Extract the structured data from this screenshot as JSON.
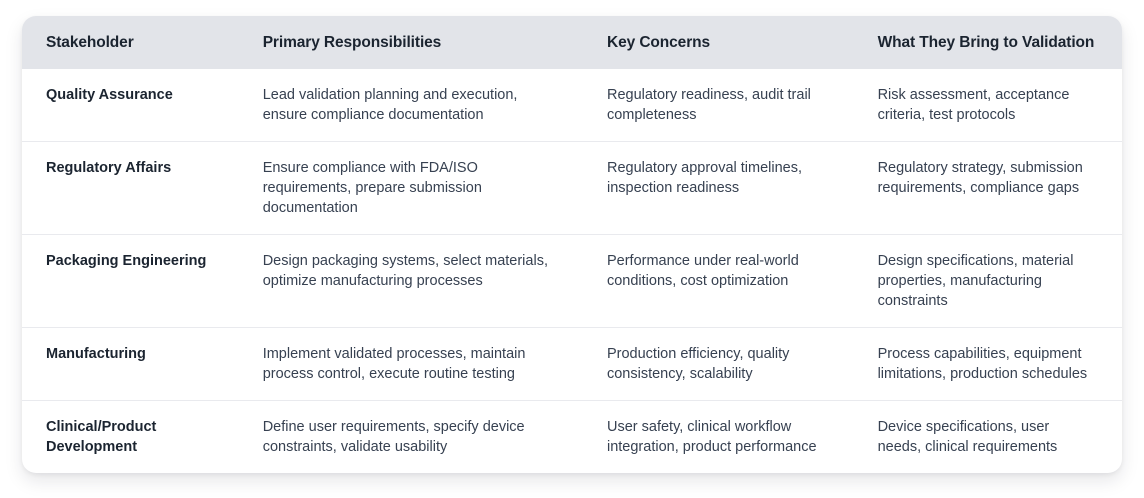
{
  "table": {
    "columns": [
      {
        "label": "Stakeholder"
      },
      {
        "label": "Primary Responsibilities"
      },
      {
        "label": "Key Concerns"
      },
      {
        "label": "What They Bring to Validation"
      }
    ],
    "rows": [
      {
        "stakeholder": "Quality Assurance",
        "responsibilities": "Lead validation planning and execution, ensure compliance documentation",
        "concerns": "Regulatory readiness, audit trail completeness",
        "brings": "Risk assessment, acceptance criteria, test protocols"
      },
      {
        "stakeholder": "Regulatory Affairs",
        "responsibilities": "Ensure compliance with FDA/ISO requirements, prepare submission documentation",
        "concerns": "Regulatory approval timelines, inspection readiness",
        "brings": "Regulatory strategy, submission requirements, compliance gaps"
      },
      {
        "stakeholder": "Packaging Engineering",
        "responsibilities": "Design packaging systems, select materials, optimize manufacturing processes",
        "concerns": "Performance under real-world conditions, cost optimization",
        "brings": "Design specifications, material properties, manufacturing constraints"
      },
      {
        "stakeholder": "Manufacturing",
        "responsibilities": "Implement validated processes, maintain process control, execute routine testing",
        "concerns": "Production efficiency, quality consistency, scalability",
        "brings": "Process capabilities, equipment limitations, production schedules"
      },
      {
        "stakeholder": "Clinical/Product Development",
        "responsibilities": "Define user requirements, specify device constraints, validate usability",
        "concerns": "User safety, clinical workflow integration, product performance",
        "brings": "Device specifications, user needs, clinical requirements"
      }
    ]
  },
  "colors": {
    "header_bg": "#e2e4e9",
    "heading_text": "#1b2430",
    "body_text": "#374151",
    "row_border": "#e9eaee",
    "card_bg": "#ffffff",
    "page_bg": "#ffffff"
  }
}
